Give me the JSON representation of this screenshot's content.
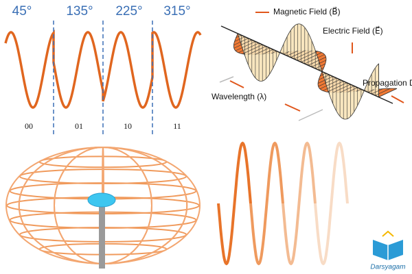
{
  "phase_diagram": {
    "angles": [
      "45°",
      "135°",
      "225°",
      "315°"
    ],
    "bits": [
      "00",
      "01",
      "10",
      "11"
    ]
  },
  "em_wave": {
    "magnetic": "Magnetic Field (B⃗)",
    "electric": "Electric Field (E⃗)",
    "propagation": "Propagation Direction",
    "wavelength": "Wavelength (λ)"
  },
  "logo": {
    "text": "Darsyagam"
  }
}
